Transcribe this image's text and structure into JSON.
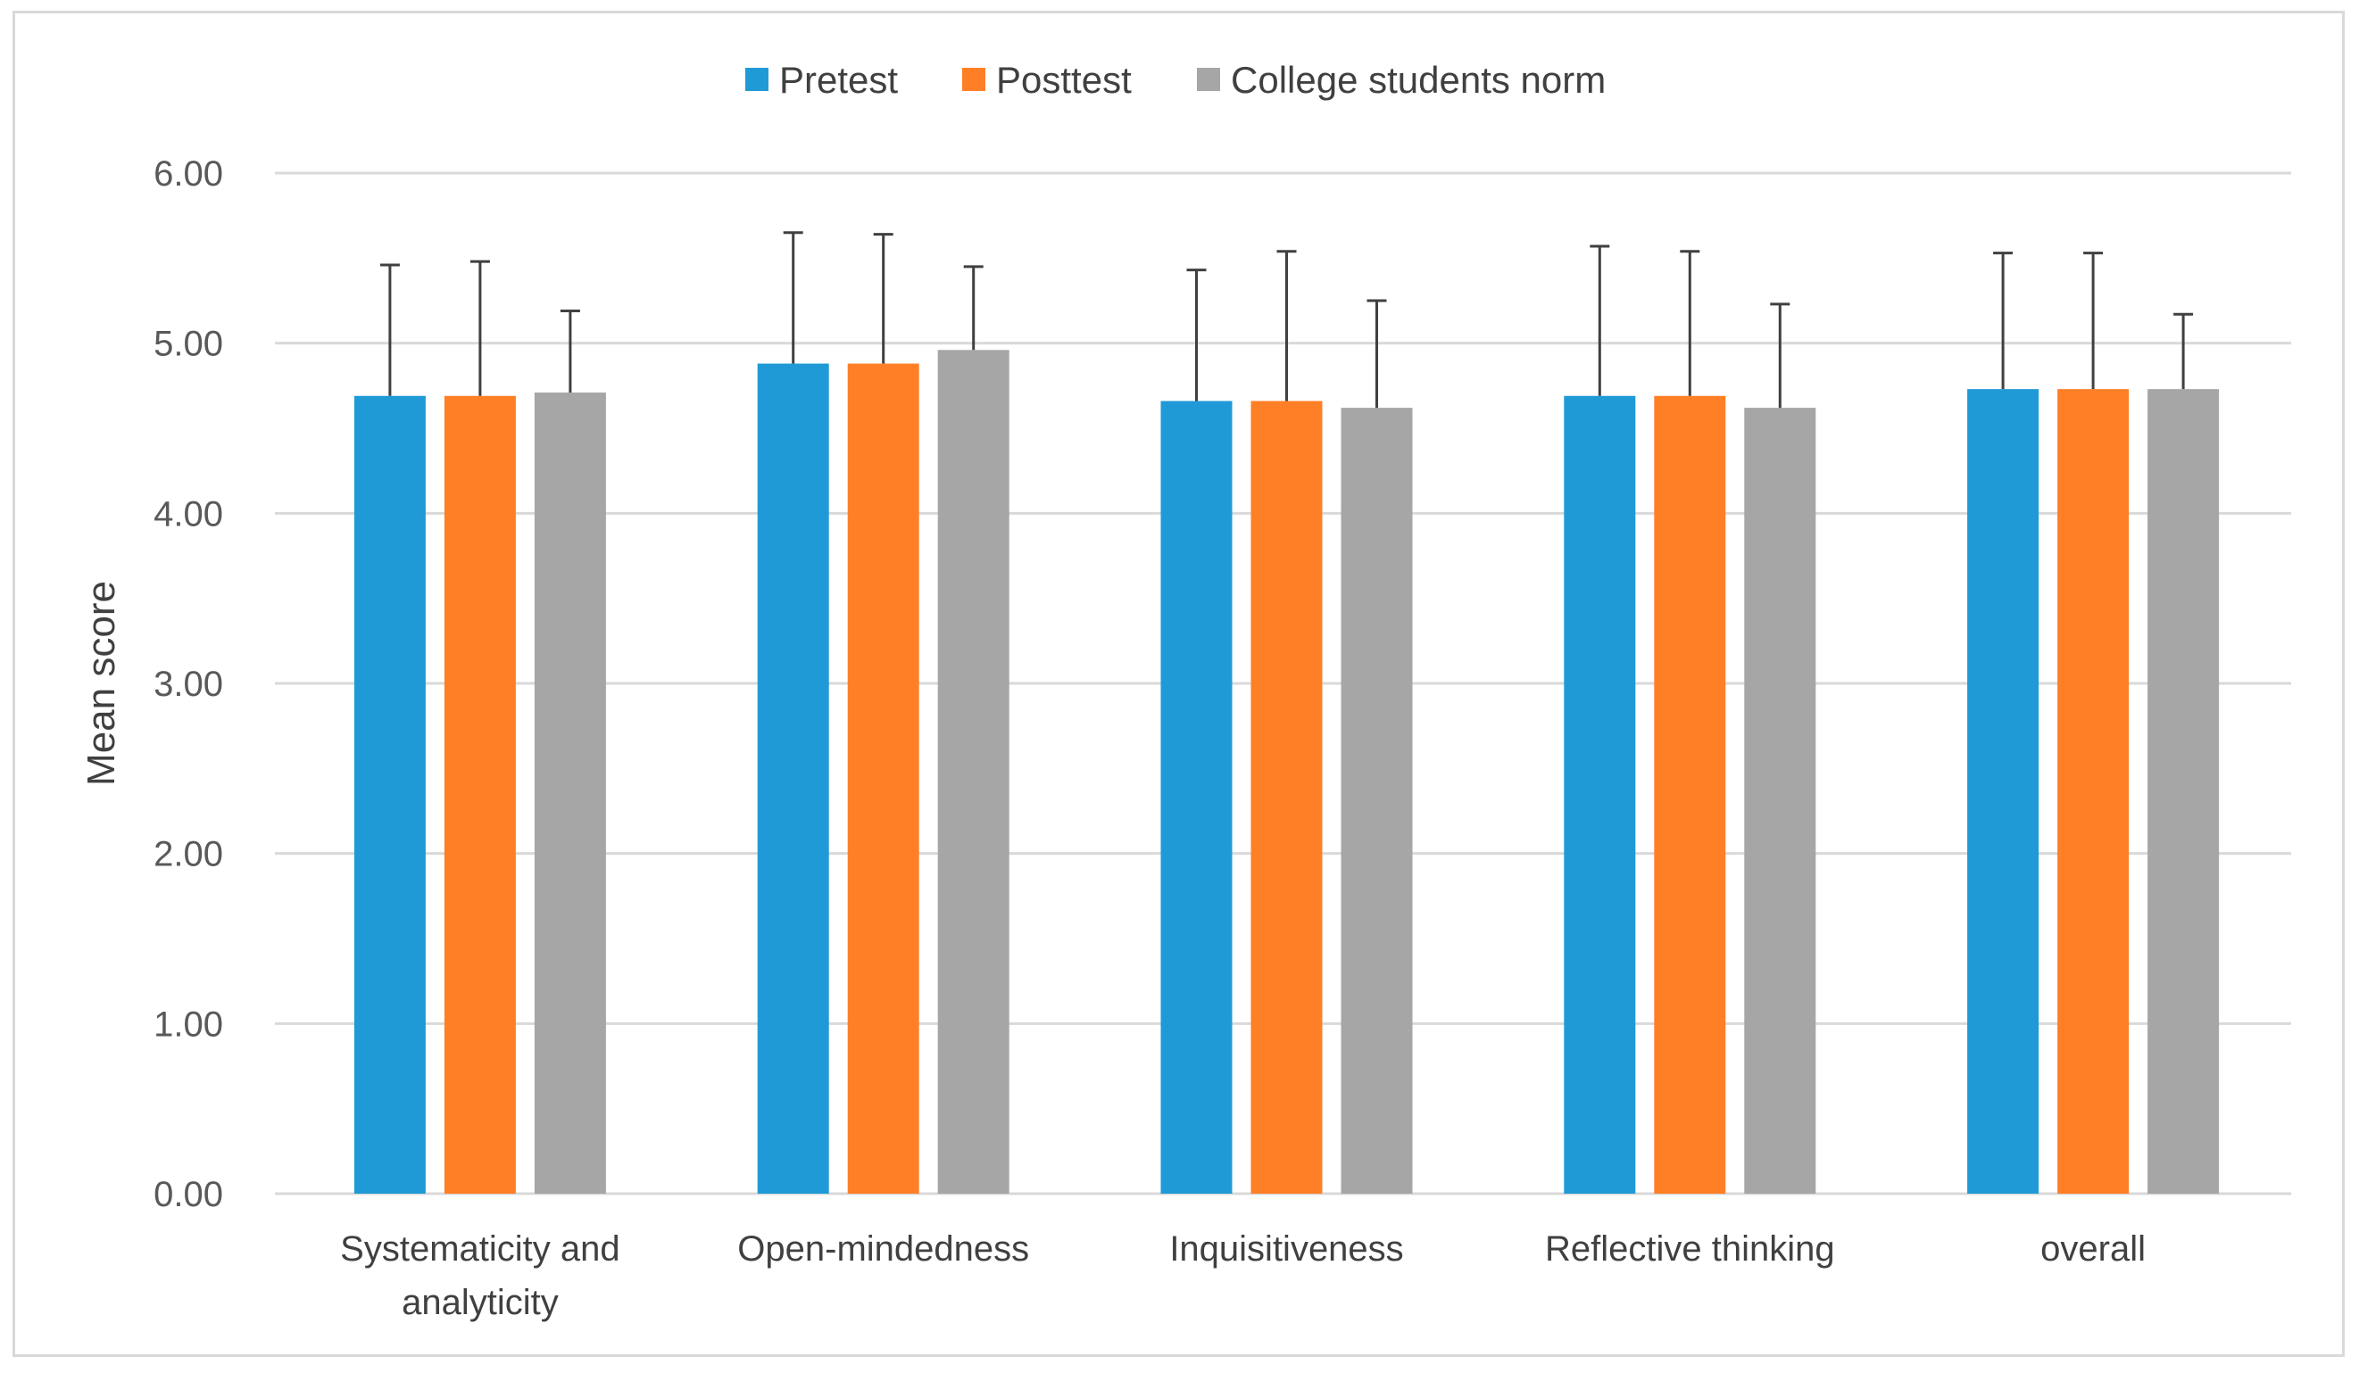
{
  "chart_data": {
    "type": "bar",
    "title": "",
    "xlabel": "",
    "ylabel": "Mean score",
    "ylim": [
      0,
      6
    ],
    "yticks": [
      "0.00",
      "1.00",
      "2.00",
      "3.00",
      "4.00",
      "5.00",
      "6.00"
    ],
    "grid": true,
    "legend_position": "top",
    "categories": [
      [
        "Systematicity and",
        "analyticity"
      ],
      [
        "Open-mindedness"
      ],
      [
        "Inquisitiveness"
      ],
      [
        "Reflective thinking"
      ],
      [
        "overall"
      ]
    ],
    "series": [
      {
        "name": "Pretest",
        "color": "#1f9ad6",
        "values": [
          4.69,
          4.88,
          4.66,
          4.69,
          4.73
        ],
        "error": [
          0.77,
          0.77,
          0.77,
          0.88,
          0.8
        ]
      },
      {
        "name": "Posttest",
        "color": "#ff7f27",
        "values": [
          4.69,
          4.88,
          4.66,
          4.69,
          4.73
        ],
        "error": [
          0.79,
          0.76,
          0.88,
          0.85,
          0.8
        ]
      },
      {
        "name": "College students norm",
        "color": "#a6a6a6",
        "values": [
          4.71,
          4.96,
          4.62,
          4.62,
          4.73
        ],
        "error": [
          0.48,
          0.49,
          0.63,
          0.61,
          0.44
        ]
      }
    ]
  }
}
